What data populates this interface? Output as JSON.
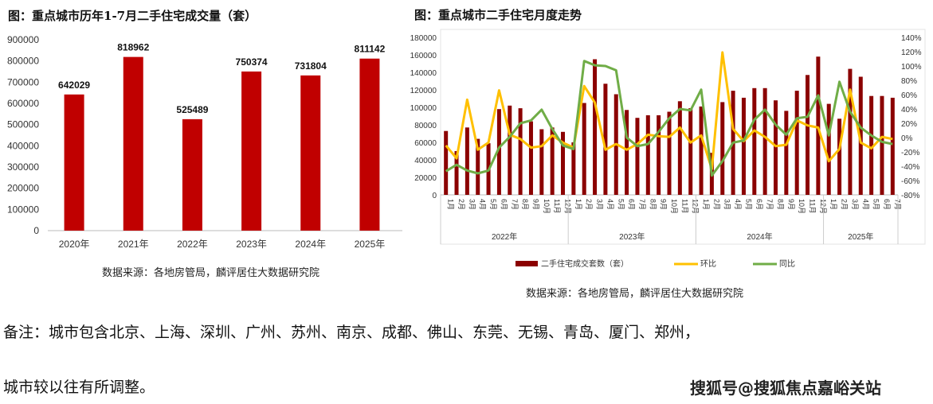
{
  "chart_data": [
    {
      "type": "bar",
      "title": "图：重点城市历年1-7月二手住宅成交量（套）",
      "categories": [
        "2020年",
        "2021年",
        "2022年",
        "2023年",
        "2024年",
        "2025年"
      ],
      "values": [
        642029,
        818962,
        525489,
        750374,
        731804,
        811142
      ],
      "ylim": [
        0,
        900000
      ],
      "yticks": [
        0,
        100000,
        200000,
        300000,
        400000,
        500000,
        600000,
        700000,
        800000,
        900000
      ],
      "bar_color": "#C00000",
      "grid": false,
      "source": "数据来源：各地房管局，麟评居住大数据研究院"
    },
    {
      "type": "bar+line",
      "title": "图：重点城市二手住宅月度走势",
      "years": [
        {
          "label": "2022年",
          "months": [
            "1月",
            "2月",
            "3月",
            "4月",
            "5月",
            "6月",
            "7月",
            "8月",
            "9月",
            "10月",
            "11月",
            "12月"
          ]
        },
        {
          "label": "2023年",
          "months": [
            "1月",
            "2月",
            "3月",
            "4月",
            "5月",
            "6月",
            "7月",
            "8月",
            "9月",
            "10月",
            "11月",
            "12月"
          ]
        },
        {
          "label": "2024年",
          "months": [
            "1月",
            "2月",
            "3月",
            "4月",
            "5月",
            "6月",
            "7月",
            "8月",
            "9月",
            "10月",
            "11月",
            "12月"
          ]
        },
        {
          "label": "2025年",
          "months": [
            "1月",
            "2月",
            "3月",
            "4月",
            "5月",
            "6月",
            "7月"
          ]
        }
      ],
      "ylim_left": [
        0,
        180000
      ],
      "yticks_left": [
        "0",
        "20000",
        "40000",
        "60000",
        "80000",
        "100000",
        "120000",
        "140000",
        "160000",
        "180000"
      ],
      "ylim_right": [
        -80,
        140
      ],
      "yticks_right": [
        "-80%",
        "-60%",
        "-40%",
        "-20%",
        "0%",
        "20%",
        "40%",
        "60%",
        "80%",
        "100%",
        "120%",
        "140%"
      ],
      "series": [
        {
          "name": "二手住宅成交套数（套）",
          "kind": "bar",
          "axis": "left",
          "color": "#8B0000",
          "values": [
            73000,
            50000,
            77000,
            64000,
            59000,
            98000,
            102000,
            99000,
            84000,
            75000,
            77000,
            72000,
            60000,
            105000,
            155000,
            127000,
            115000,
            97000,
            88000,
            91000,
            91000,
            95000,
            107000,
            99000,
            101000,
            48000,
            106000,
            119000,
            111000,
            122000,
            122000,
            108000,
            96000,
            119000,
            137000,
            158000,
            104000,
            87000,
            144000,
            135000,
            113000,
            113000,
            111000
          ]
        },
        {
          "name": "环比",
          "kind": "line",
          "axis": "right",
          "color": "#FFC000",
          "values": [
            -11,
            -29,
            53,
            -17,
            -7,
            66,
            4,
            -2,
            -14,
            -12,
            3,
            -7,
            -14,
            72,
            49,
            -17,
            -9,
            -17,
            -9,
            4,
            2,
            1,
            14,
            -7,
            3,
            -44,
            119,
            12,
            -5,
            10,
            1,
            -12,
            -10,
            24,
            17,
            14,
            -33,
            -16,
            67,
            -7,
            -15,
            1,
            -2
          ]
        },
        {
          "name": "同比",
          "kind": "line",
          "axis": "right",
          "color": "#70AD47",
          "values": [
            -47,
            -38,
            -46,
            -50,
            -46,
            -14,
            1,
            20,
            24,
            39,
            12,
            -11,
            -16,
            107,
            101,
            100,
            94,
            0,
            -12,
            -9,
            8,
            27,
            40,
            38,
            67,
            -53,
            -33,
            -7,
            -4,
            25,
            39,
            18,
            4,
            27,
            29,
            59,
            3,
            78,
            36,
            14,
            3,
            -6,
            -9
          ]
        }
      ],
      "legend_position": "bottom",
      "grid": false,
      "source": "数据来源：各地房管局，麟评居住大数据研究院"
    }
  ],
  "footnote": {
    "line1": "备注：城市包含北京、上海、深圳、广州、苏州、南京、成都、佛山、东莞、无锡、青岛、厦门、郑州，",
    "line2": "城市较以往有所调整。"
  },
  "watermark": "搜狐号@搜狐焦点嘉峪关站"
}
